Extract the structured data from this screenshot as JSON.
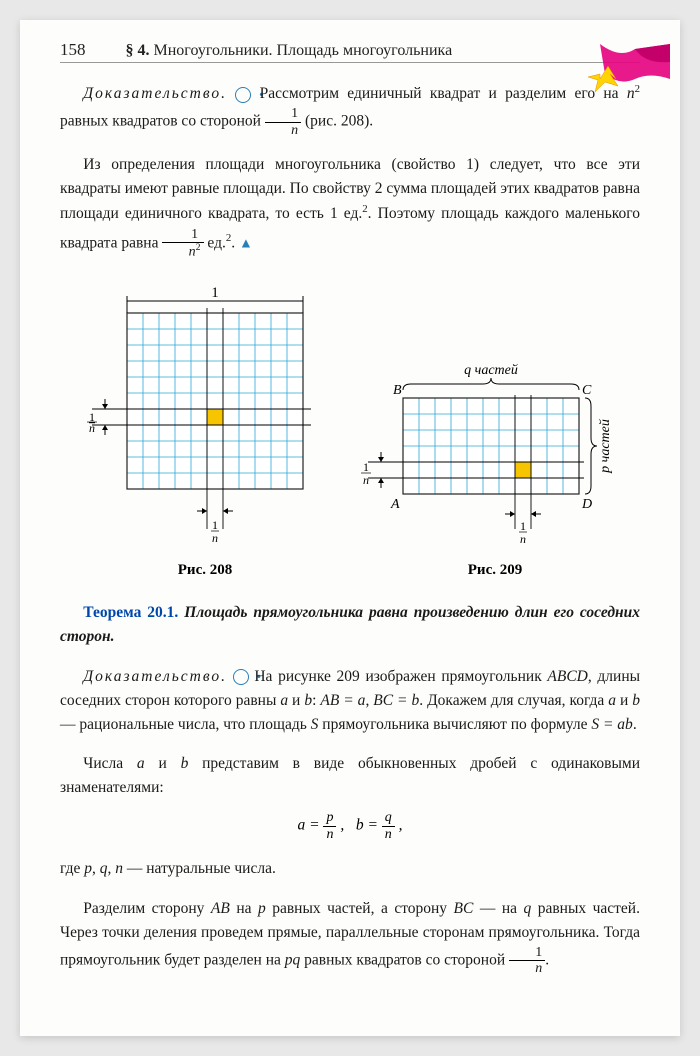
{
  "header": {
    "page": "158",
    "chapter_prefix": "§ 4.",
    "chapter_title": "Многоугольники. Площадь многоугольника"
  },
  "para1": {
    "proof_word": "Доказательство.",
    "text1": "Рассмотрим единичный квадрат и разделим его на ",
    "n2": "n",
    "text2": " равных квадратов со стороной ",
    "text3": " (рис. 208)."
  },
  "para2": {
    "text1": "Из определения площади многоугольника (свойство 1) следует, что все эти квадраты имеют равные площади. По свойству 2 сумма площадей этих квадратов равна площади единичного квадрата, то есть 1 ед.",
    "text2": ". Поэтому площадь каждого маленького квадрата равна ",
    "text3": " ед.",
    "text4": ". "
  },
  "fig208": {
    "caption": "Рис. 208",
    "top_label": "1",
    "n": 11,
    "highlight_row": 6,
    "highlight_col": 5,
    "cell": 16,
    "grid_color": "#2aa8d8",
    "border_color": "#222",
    "highlight_color": "#f7c400"
  },
  "fig209": {
    "caption": "Рис. 209",
    "q_label": "q частей",
    "p_label": "p частей",
    "B": "B",
    "C": "C",
    "A": "A",
    "D": "D",
    "cols": 11,
    "rows": 6,
    "highlight_row": 4,
    "highlight_col": 7,
    "cell": 16,
    "grid_color": "#2aa8d8",
    "border_color": "#222",
    "highlight_color": "#f7c400"
  },
  "theorem": {
    "num": "Теорема 20.1.",
    "text": "Площадь прямоугольника равна произведению длин его соседних сторон."
  },
  "para3": {
    "proof_word": "Доказательство.",
    "t1": "На рисунке 209 изображен прямоугольник ",
    "t2": "ABCD",
    "t3": ", длины соседних сторон которого равны ",
    "t4": "a",
    "t5": " и ",
    "t6": "b",
    "t7": ": ",
    "t8": "AB = a",
    "t9": ", ",
    "t10": "BC = b",
    "t11": ". Докажем для случая, когда ",
    "t12": " — рациональные числа, что площадь ",
    "t13": "S",
    "t14": " прямоугольника вычисляют по формуле ",
    "t15": "S = ab",
    "t16": "."
  },
  "para4": {
    "t1": "Числа ",
    "t2": " представим в виде обыкновенных дробей с одинаковыми знаменателями:"
  },
  "formula": {
    "a": "a",
    "p": "p",
    "n": "n",
    "b": "b",
    "q": "q"
  },
  "para5": {
    "t1": "где ",
    "t2": "p",
    "t3": ", ",
    "t4": "q",
    "t5": ", ",
    "t6": "n",
    "t7": " — натуральные числа."
  },
  "para6": {
    "t1": "Разделим сторону ",
    "t2": "AB",
    "t3": " на ",
    "t4": "p",
    "t5": " равных частей, а сторону ",
    "t6": "BC",
    "t7": " — на ",
    "t8": "q",
    "t9": " равных частей. Через точки деления проведем прямые, параллельные сторонам прямоугольника. Тогда прямоугольник будет разделен на ",
    "t10": "pq",
    "t11": " равных квадратов со стороной ",
    "t12": "."
  }
}
